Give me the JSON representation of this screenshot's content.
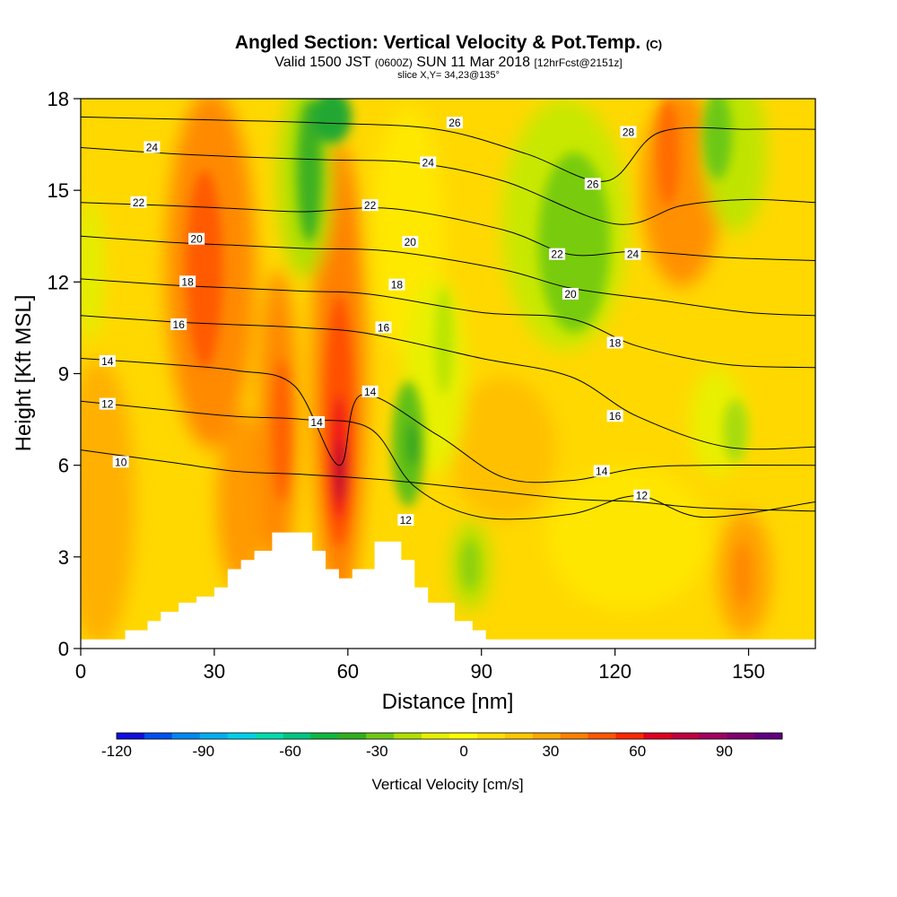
{
  "title": {
    "main": "Angled Section: Vertical Velocity & Pot.Temp.",
    "main_unit": "(C)",
    "valid_prefix": "Valid 1500 JST",
    "valid_utc": "(0600Z)",
    "valid_date": "SUN 11 Mar 2018",
    "forecast": "[12hrFcst@2151z]",
    "slice": "slice X,Y= 34,23@135°"
  },
  "chart_data": {
    "type": "heatmap",
    "title": "Angled Section: Vertical Velocity & Pot.Temp.",
    "xlabel": "Distance [nm]",
    "ylabel": "Height [Kft MSL]",
    "xlim": [
      0,
      165
    ],
    "ylim": [
      0,
      18
    ],
    "xticks": [
      "0",
      "30",
      "60",
      "90",
      "120",
      "150"
    ],
    "yticks": [
      "0",
      "3",
      "6",
      "9",
      "12",
      "15",
      "18"
    ],
    "colorbar": {
      "label": "Vertical Velocity [cm/s]",
      "ticks": [
        "-120",
        "-90",
        "-60",
        "-30",
        "0",
        "30",
        "60",
        "90"
      ],
      "range": [
        -120,
        110
      ],
      "colors": [
        "#1010e0",
        "#0050f0",
        "#0088f0",
        "#00b0f0",
        "#00d0e8",
        "#00dcb0",
        "#00c880",
        "#10b840",
        "#30b020",
        "#70c818",
        "#b0e000",
        "#e8f000",
        "#ffff00",
        "#ffe000",
        "#ffc800",
        "#ffa800",
        "#ff8000",
        "#ff5800",
        "#ff2800",
        "#e00020",
        "#c00040",
        "#a00060",
        "#800070",
        "#600080"
      ]
    },
    "terrain_profile": [
      [
        0,
        0.3
      ],
      [
        10,
        0.3
      ],
      [
        10,
        0.6
      ],
      [
        15,
        0.6
      ],
      [
        15,
        0.9
      ],
      [
        18,
        0.9
      ],
      [
        18,
        1.2
      ],
      [
        22,
        1.2
      ],
      [
        22,
        1.5
      ],
      [
        26,
        1.5
      ],
      [
        26,
        1.7
      ],
      [
        30,
        1.7
      ],
      [
        30,
        2.0
      ],
      [
        33,
        2.0
      ],
      [
        33,
        2.6
      ],
      [
        36,
        2.6
      ],
      [
        36,
        2.9
      ],
      [
        39,
        2.9
      ],
      [
        39,
        3.2
      ],
      [
        43,
        3.2
      ],
      [
        43,
        3.8
      ],
      [
        52,
        3.8
      ],
      [
        52,
        3.2
      ],
      [
        55,
        3.2
      ],
      [
        55,
        2.6
      ],
      [
        58,
        2.6
      ],
      [
        58,
        2.3
      ],
      [
        61,
        2.3
      ],
      [
        61,
        2.6
      ],
      [
        66,
        2.6
      ],
      [
        66,
        3.5
      ],
      [
        72,
        3.5
      ],
      [
        72,
        2.9
      ],
      [
        75,
        2.9
      ],
      [
        75,
        2.0
      ],
      [
        78,
        2.0
      ],
      [
        78,
        1.5
      ],
      [
        84,
        1.5
      ],
      [
        84,
        0.9
      ],
      [
        88,
        0.9
      ],
      [
        88,
        0.6
      ],
      [
        91,
        0.6
      ],
      [
        91,
        0.3
      ],
      [
        165,
        0.3
      ]
    ],
    "vertical_velocity_features": [
      {
        "x": 29,
        "y": 12.2,
        "value": 55
      },
      {
        "x": 59,
        "y": 6.2,
        "value": 90
      },
      {
        "x": 45,
        "y": 7.5,
        "value": 45
      },
      {
        "x": 53,
        "y": 16.5,
        "value": -35
      },
      {
        "x": 75,
        "y": 6.5,
        "value": -30
      },
      {
        "x": 110,
        "y": 14.0,
        "value": -20
      },
      {
        "x": 145,
        "y": 17.0,
        "value": -25
      },
      {
        "x": 133,
        "y": 15.5,
        "value": 40
      },
      {
        "x": 150,
        "y": 2.6,
        "value": 30
      },
      {
        "x": 88,
        "y": 2.8,
        "value": -15
      }
    ],
    "isentropes": [
      {
        "theta": 10,
        "points": [
          [
            0,
            6.5
          ],
          [
            20,
            6.1
          ],
          [
            35,
            5.8
          ],
          [
            50,
            5.7
          ],
          [
            70,
            5.5
          ],
          [
            90,
            5.2
          ],
          [
            110,
            4.9
          ],
          [
            125,
            4.8
          ],
          [
            140,
            4.6
          ],
          [
            165,
            4.5
          ]
        ]
      },
      {
        "theta": 12,
        "points": [
          [
            0,
            8.1
          ],
          [
            20,
            7.8
          ],
          [
            35,
            7.6
          ],
          [
            50,
            7.5
          ],
          [
            65,
            7.2
          ],
          [
            75,
            5.3
          ],
          [
            90,
            4.3
          ],
          [
            110,
            4.4
          ],
          [
            125,
            5.0
          ],
          [
            140,
            4.3
          ],
          [
            165,
            4.8
          ]
        ]
      },
      {
        "theta": 14,
        "points": [
          [
            0,
            9.5
          ],
          [
            20,
            9.3
          ],
          [
            35,
            9.1
          ],
          [
            48,
            8.6
          ],
          [
            58,
            6.0
          ],
          [
            63,
            8.3
          ],
          [
            80,
            7.0
          ],
          [
            95,
            5.6
          ],
          [
            110,
            5.5
          ],
          [
            125,
            5.9
          ],
          [
            140,
            6.0
          ],
          [
            165,
            6.0
          ]
        ]
      },
      {
        "theta": 16,
        "points": [
          [
            0,
            10.9
          ],
          [
            20,
            10.7
          ],
          [
            35,
            10.6
          ],
          [
            50,
            10.5
          ],
          [
            65,
            10.3
          ],
          [
            90,
            9.5
          ],
          [
            110,
            8.9
          ],
          [
            125,
            7.6
          ],
          [
            145,
            6.6
          ],
          [
            165,
            6.6
          ]
        ]
      },
      {
        "theta": 18,
        "points": [
          [
            0,
            12.1
          ],
          [
            20,
            11.9
          ],
          [
            35,
            11.8
          ],
          [
            50,
            11.7
          ],
          [
            65,
            11.6
          ],
          [
            90,
            11.0
          ],
          [
            110,
            10.8
          ],
          [
            125,
            9.9
          ],
          [
            145,
            9.3
          ],
          [
            165,
            9.2
          ]
        ]
      },
      {
        "theta": 20,
        "points": [
          [
            0,
            13.5
          ],
          [
            20,
            13.3
          ],
          [
            35,
            13.2
          ],
          [
            50,
            13.1
          ],
          [
            70,
            13.0
          ],
          [
            95,
            12.4
          ],
          [
            110,
            11.8
          ],
          [
            130,
            11.4
          ],
          [
            150,
            11.0
          ],
          [
            165,
            10.9
          ]
        ]
      },
      {
        "theta": 22,
        "points": [
          [
            0,
            14.6
          ],
          [
            20,
            14.5
          ],
          [
            35,
            14.4
          ],
          [
            50,
            14.3
          ],
          [
            70,
            14.4
          ],
          [
            95,
            13.7
          ],
          [
            110,
            12.9
          ],
          [
            125,
            13.0
          ],
          [
            145,
            12.8
          ],
          [
            165,
            12.7
          ]
        ]
      },
      {
        "theta": 24,
        "points": [
          [
            0,
            16.4
          ],
          [
            20,
            16.2
          ],
          [
            35,
            16.1
          ],
          [
            55,
            16.0
          ],
          [
            75,
            15.9
          ],
          [
            95,
            15.3
          ],
          [
            120,
            13.9
          ],
          [
            135,
            14.5
          ],
          [
            150,
            14.7
          ],
          [
            165,
            14.6
          ]
        ]
      },
      {
        "theta": 26,
        "points": [
          [
            0,
            17.4
          ],
          [
            30,
            17.3
          ],
          [
            55,
            17.2
          ],
          [
            80,
            17.0
          ],
          [
            100,
            16.2
          ],
          [
            118,
            15.3
          ],
          [
            130,
            16.9
          ],
          [
            150,
            17.0
          ],
          [
            165,
            17.0
          ]
        ]
      }
    ],
    "contour_labels": [
      {
        "text": "24",
        "x": 16,
        "y": 16.4
      },
      {
        "text": "22",
        "x": 13,
        "y": 14.6
      },
      {
        "text": "20",
        "x": 26,
        "y": 13.4
      },
      {
        "text": "18",
        "x": 24,
        "y": 12.0
      },
      {
        "text": "16",
        "x": 22,
        "y": 10.6
      },
      {
        "text": "14",
        "x": 6,
        "y": 9.4
      },
      {
        "text": "12",
        "x": 6,
        "y": 8.0
      },
      {
        "text": "10",
        "x": 9,
        "y": 6.1
      },
      {
        "text": "26",
        "x": 84,
        "y": 17.2
      },
      {
        "text": "24",
        "x": 78,
        "y": 15.9
      },
      {
        "text": "22",
        "x": 65,
        "y": 14.5
      },
      {
        "text": "20",
        "x": 74,
        "y": 13.3
      },
      {
        "text": "18",
        "x": 71,
        "y": 11.9
      },
      {
        "text": "16",
        "x": 68,
        "y": 10.5
      },
      {
        "text": "14",
        "x": 65,
        "y": 8.4
      },
      {
        "text": "14",
        "x": 53,
        "y": 7.4
      },
      {
        "text": "12",
        "x": 73,
        "y": 4.2
      },
      {
        "text": "28",
        "x": 123,
        "y": 16.9
      },
      {
        "text": "26",
        "x": 115,
        "y": 15.2
      },
      {
        "text": "24",
        "x": 124,
        "y": 12.9
      },
      {
        "text": "22",
        "x": 107,
        "y": 12.9
      },
      {
        "text": "20",
        "x": 110,
        "y": 11.6
      },
      {
        "text": "18",
        "x": 120,
        "y": 10.0
      },
      {
        "text": "16",
        "x": 120,
        "y": 7.6
      },
      {
        "text": "14",
        "x": 117,
        "y": 5.8
      },
      {
        "text": "12",
        "x": 126,
        "y": 5.0
      }
    ]
  }
}
